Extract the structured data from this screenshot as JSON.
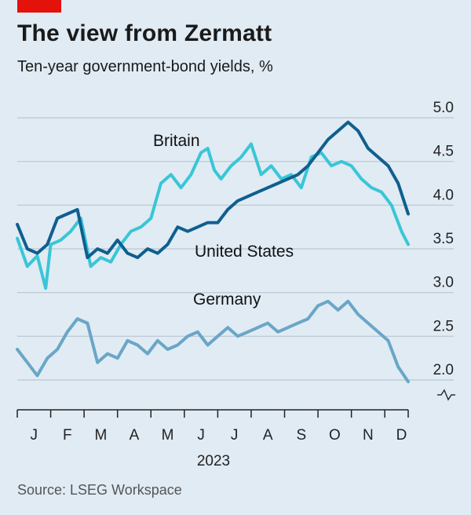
{
  "header": {
    "title": "The view from Zermatt",
    "subtitle": "Ten-year government-bond yields, %"
  },
  "footer": {
    "source": "Source: LSEG Workspace"
  },
  "colors": {
    "background": "#e0ebf4",
    "britain": "#39c6d6",
    "united_states": "#0f5f8f",
    "germany": "#6aa6c6",
    "grid": "#b9c6d1",
    "brand": "#e3120b"
  },
  "chart_data": {
    "type": "line",
    "title": "The view from Zermatt",
    "subtitle": "Ten-year government-bond yields, %",
    "ylim": [
      1.9,
      5.0
    ],
    "y_ticks": [
      "5.0",
      "4.5",
      "4.0",
      "3.5",
      "3.0",
      "2.5",
      "2.0"
    ],
    "x_ticks": [
      "J",
      "F",
      "M",
      "A",
      "M",
      "J",
      "J",
      "A",
      "S",
      "O",
      "N",
      "D"
    ],
    "x_year_label": "2023",
    "x_range_months": [
      0,
      11.7
    ],
    "grid": true,
    "axis_break": "y-axis broken below 2.0",
    "series": [
      {
        "name": "Britain",
        "color": "#39c6d6",
        "x": [
          0,
          0.3,
          0.6,
          0.85,
          1.0,
          1.3,
          1.6,
          1.9,
          2.2,
          2.5,
          2.8,
          3.1,
          3.4,
          3.7,
          4.0,
          4.3,
          4.6,
          4.9,
          5.2,
          5.5,
          5.7,
          5.9,
          6.1,
          6.4,
          6.7,
          7.0,
          7.3,
          7.6,
          7.9,
          8.2,
          8.5,
          8.8,
          9.1,
          9.4,
          9.7,
          10.0,
          10.3,
          10.6,
          10.9,
          11.2,
          11.5,
          11.7
        ],
        "values": [
          3.62,
          3.3,
          3.42,
          3.05,
          3.55,
          3.6,
          3.7,
          3.85,
          3.3,
          3.4,
          3.35,
          3.55,
          3.7,
          3.75,
          3.85,
          4.25,
          4.35,
          4.2,
          4.35,
          4.6,
          4.65,
          4.4,
          4.3,
          4.45,
          4.55,
          4.7,
          4.35,
          4.45,
          4.3,
          4.35,
          4.2,
          4.55,
          4.6,
          4.45,
          4.5,
          4.45,
          4.3,
          4.2,
          4.15,
          4.0,
          3.7,
          3.55
        ]
      },
      {
        "name": "United States",
        "color": "#0f5f8f",
        "x": [
          0,
          0.3,
          0.6,
          0.9,
          1.2,
          1.5,
          1.8,
          2.1,
          2.4,
          2.7,
          3.0,
          3.3,
          3.6,
          3.9,
          4.2,
          4.5,
          4.8,
          5.1,
          5.4,
          5.7,
          6.0,
          6.3,
          6.6,
          6.9,
          7.2,
          7.5,
          7.8,
          8.1,
          8.4,
          8.7,
          9.0,
          9.3,
          9.6,
          9.9,
          10.2,
          10.5,
          10.8,
          11.1,
          11.4,
          11.7
        ],
        "values": [
          3.78,
          3.5,
          3.45,
          3.55,
          3.85,
          3.9,
          3.95,
          3.4,
          3.5,
          3.45,
          3.6,
          3.45,
          3.4,
          3.5,
          3.45,
          3.55,
          3.75,
          3.7,
          3.75,
          3.8,
          3.8,
          3.95,
          4.05,
          4.1,
          4.15,
          4.2,
          4.25,
          4.3,
          4.35,
          4.45,
          4.6,
          4.75,
          4.85,
          4.95,
          4.85,
          4.65,
          4.55,
          4.45,
          4.25,
          3.9
        ]
      },
      {
        "name": "Germany",
        "color": "#6aa6c6",
        "x": [
          0,
          0.3,
          0.6,
          0.9,
          1.2,
          1.5,
          1.8,
          2.1,
          2.4,
          2.7,
          3.0,
          3.3,
          3.6,
          3.9,
          4.2,
          4.5,
          4.8,
          5.1,
          5.4,
          5.7,
          6.0,
          6.3,
          6.6,
          6.9,
          7.2,
          7.5,
          7.8,
          8.1,
          8.4,
          8.7,
          9.0,
          9.3,
          9.6,
          9.9,
          10.2,
          10.5,
          10.8,
          11.1,
          11.4,
          11.7
        ],
        "values": [
          2.35,
          2.2,
          2.05,
          2.25,
          2.35,
          2.55,
          2.7,
          2.65,
          2.2,
          2.3,
          2.25,
          2.45,
          2.4,
          2.3,
          2.45,
          2.35,
          2.4,
          2.5,
          2.55,
          2.4,
          2.5,
          2.6,
          2.5,
          2.55,
          2.6,
          2.65,
          2.55,
          2.6,
          2.65,
          2.7,
          2.85,
          2.9,
          2.8,
          2.9,
          2.75,
          2.65,
          2.55,
          2.45,
          2.15,
          1.98
        ]
      }
    ]
  }
}
